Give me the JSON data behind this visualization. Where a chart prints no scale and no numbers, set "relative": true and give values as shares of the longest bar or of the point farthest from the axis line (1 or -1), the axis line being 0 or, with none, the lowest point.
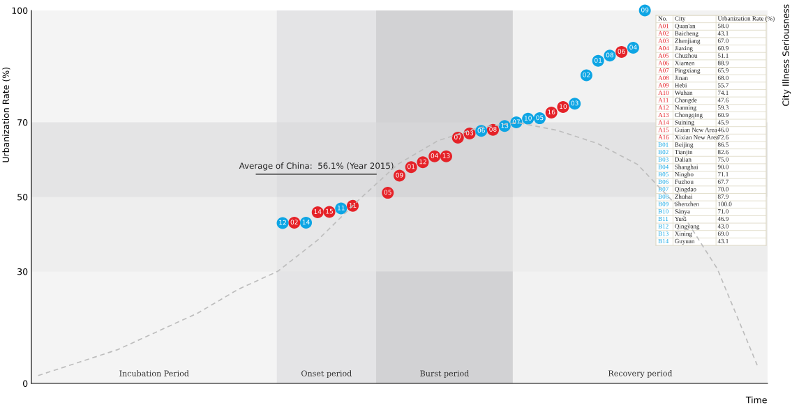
{
  "chart_data": [
    {
      "type": "scatter",
      "xlabel": "Time",
      "ylabel": "Urbanization Rate (%)",
      "categories": [
        null,
        null,
        null,
        null,
        null,
        null,
        null,
        null,
        null,
        null,
        null,
        null,
        null,
        null,
        null,
        null,
        null,
        null,
        null,
        null,
        null,
        null,
        null,
        null,
        null,
        null,
        null,
        null,
        null,
        null,
        null,
        null,
        null,
        null,
        null,
        null,
        null,
        null,
        null,
        null,
        null,
        null,
        null,
        null,
        null,
        null,
        null,
        null,
        null,
        null,
        null,
        null,
        null,
        null,
        null,
        null,
        null,
        null,
        null,
        null,
        null,
        null,
        null
      ],
      "ylim": [
        0,
        100
      ],
      "yticks": [
        0,
        30,
        50,
        70,
        100
      ],
      "marker": "circle",
      "series": [
        {
          "color": "#e52228",
          "values": [
            null,
            null,
            null,
            null,
            null,
            null,
            null,
            null,
            null,
            null,
            null,
            null,
            null,
            null,
            null,
            null,
            null,
            null,
            null,
            null,
            null,
            null,
            43.1,
            null,
            45.9,
            46.0,
            null,
            47.6,
            null,
            null,
            51.1,
            55.7,
            58.0,
            59.3,
            60.9,
            60.9,
            65.9,
            67.0,
            null,
            68.0,
            null,
            null,
            null,
            null,
            72.6,
            74.1,
            null,
            null,
            null,
            null,
            88.9,
            null,
            null,
            null,
            null,
            null,
            null,
            null,
            null,
            null,
            null,
            null,
            null
          ]
        },
        {
          "color": "#0ea5e4",
          "values": [
            null,
            null,
            null,
            null,
            null,
            null,
            null,
            null,
            null,
            null,
            null,
            null,
            null,
            null,
            null,
            null,
            null,
            null,
            null,
            null,
            null,
            43.0,
            null,
            43.1,
            null,
            null,
            46.9,
            null,
            null,
            null,
            null,
            null,
            null,
            null,
            null,
            null,
            null,
            null,
            67.7,
            null,
            69.0,
            70.0,
            71.0,
            71.1,
            null,
            null,
            75.0,
            82.6,
            86.5,
            87.9,
            null,
            90.0,
            100.0,
            null,
            null,
            null,
            null,
            null,
            null,
            null,
            null,
            null,
            null
          ]
        }
      ],
      "ref_lines": [
        {
          "axis": "y",
          "value": 56.1,
          "label": "Average of China:  56.1% (Year 2015)",
          "color": "#555555"
        }
      ],
      "bands": [
        {
          "axis": "y",
          "from": 30,
          "to": 50,
          "color": "#e9e9ea"
        },
        {
          "axis": "y",
          "from": 50,
          "to": 70,
          "color": "#d9d9db"
        }
      ],
      "annotations": [
        "Incubation Period",
        "Onset period",
        "Burst period",
        "Recovery period",
        {
          "text": "12",
          "y": 43.0
        },
        {
          "text": "02",
          "y": 43.1
        },
        {
          "text": "14",
          "y": 43.1
        },
        {
          "text": "14",
          "y": 45.9
        },
        {
          "text": "15",
          "y": 46.0
        },
        {
          "text": "11",
          "y": 46.9
        },
        {
          "text": "11",
          "y": 47.6
        },
        {
          "text": "05",
          "y": 51.1
        },
        {
          "text": "09",
          "y": 55.7
        },
        {
          "text": "01",
          "y": 58.0
        },
        {
          "text": "12",
          "y": 59.3
        },
        {
          "text": "04",
          "y": 60.9
        },
        {
          "text": "13",
          "y": 60.9
        },
        {
          "text": "07",
          "y": 65.9
        },
        {
          "text": "03",
          "y": 67.0
        },
        {
          "text": "06",
          "y": 67.7
        },
        {
          "text": "08",
          "y": 68.0
        },
        {
          "text": "13",
          "y": 69.0
        },
        {
          "text": "07",
          "y": 70.0
        },
        {
          "text": "10",
          "y": 71.0
        },
        {
          "text": "05",
          "y": 71.1
        },
        {
          "text": "16",
          "y": 72.6
        },
        {
          "text": "10",
          "y": 74.1
        },
        {
          "text": "03",
          "y": 75.0
        },
        {
          "text": "02",
          "y": 82.6
        },
        {
          "text": "01",
          "y": 86.5
        },
        {
          "text": "08",
          "y": 87.9
        },
        {
          "text": "06",
          "y": 88.9
        },
        {
          "text": "04",
          "y": 90.0
        },
        {
          "text": "09",
          "y": 100.0
        }
      ]
    },
    {
      "type": "line",
      "relative": true,
      "y2label": "City Illness Seriousness",
      "color": "#bdbdbd",
      "line_style": "dashed",
      "categories": [
        null,
        null,
        null,
        null,
        null,
        null,
        null,
        null,
        null,
        null,
        null,
        null,
        null,
        null,
        null,
        null,
        null,
        null,
        null
      ],
      "values": [
        0.03,
        0.08,
        0.13,
        0.2,
        0.27,
        0.36,
        0.43,
        0.55,
        0.7,
        0.84,
        0.93,
        0.98,
        1.0,
        0.97,
        0.92,
        0.84,
        0.68,
        0.44,
        0.07
      ]
    },
    {
      "type": "other",
      "annotations": [
        "No.",
        "City",
        "Urbanization Rate (%)",
        "A01",
        "Quan'an",
        "58.0",
        "A02",
        "Baicheng",
        "43.1",
        "A03",
        "Zhenjiang",
        "67.0",
        "A04",
        "Jiaxing",
        "60.9",
        "A05",
        "Chuzhou",
        "51.1",
        "A06",
        "Xiamen",
        "88.9",
        "A07",
        "Pingxiang",
        "65.9",
        "A08",
        "Jinan",
        "68.0",
        "A09",
        "Hebi",
        "55.7",
        "A10",
        "Wuhan",
        "74.1",
        "A11",
        "Changde",
        "47.6",
        "A12",
        "Nanning",
        "59.3",
        "A13",
        "Chongqing",
        "60.9",
        "A14",
        "Suining",
        "45.9",
        "A15",
        "Guian New Area",
        "46.0",
        "A16",
        "Xixian New Area",
        "72.6",
        "B01",
        "Beijing",
        "86.5",
        "B02",
        "Tianjin",
        "82.6",
        "B03",
        "Dalian",
        "75.0",
        "B04",
        "Shanghai",
        "90.0",
        "B05",
        "Ningbo",
        "71.1",
        "B06",
        "Fuzhou",
        "67.7",
        "B07",
        "Qingdao",
        "70.0",
        "B08",
        "Zhuhai",
        "87.9",
        "B09",
        "Shenzhen",
        "100.0",
        "B10",
        "Sanya",
        "71.0",
        "B11",
        "Yuxi",
        "46.9",
        "B12",
        "Qingyang",
        "43.0",
        "B13",
        "Xining",
        "69.0",
        "B14",
        "Guyuan",
        "43.1"
      ]
    }
  ]
}
